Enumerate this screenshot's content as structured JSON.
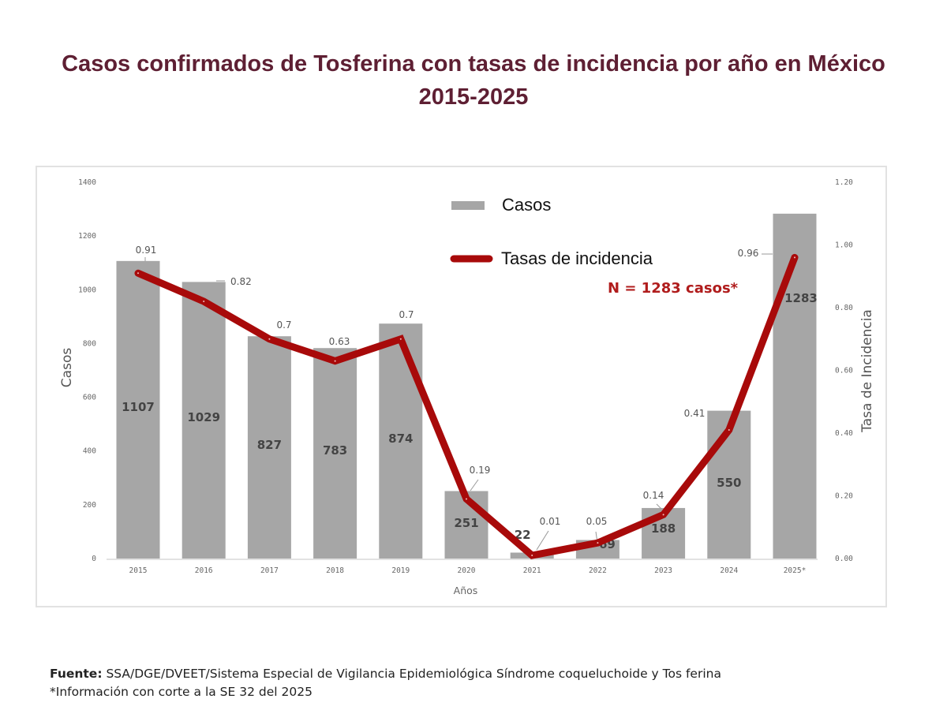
{
  "title": {
    "line1": "Casos confirmados de Tosferina con tasas de incidencia por año en México",
    "line2": "2015-2025"
  },
  "colors": {
    "title": "#5e1f33",
    "bars": "#a6a6a6",
    "line": "#a80a0a",
    "n_text": "#b01c1c"
  },
  "chart_data": {
    "type": "bar",
    "title": "Casos confirmados de Tosferina con tasas de incidencia por año en México 2015-2025",
    "categories": [
      "2015",
      "2016",
      "2017",
      "2018",
      "2019",
      "2020",
      "2021",
      "2022",
      "2023",
      "2024",
      "2025*"
    ],
    "xlabel": "Años",
    "ylabel": "Casos",
    "y2label": "Tasa de Incidencia",
    "ylim": [
      0,
      1400
    ],
    "y2lim": [
      0,
      1.2
    ],
    "yticks": [
      "0",
      "200",
      "400",
      "600",
      "800",
      "1000",
      "1200",
      "1400"
    ],
    "y2ticks": [
      "0.00",
      "0.20",
      "0.40",
      "0.60",
      "0.80",
      "1.00",
      "1.20"
    ],
    "grid": false,
    "legend_position": "top-center",
    "series": [
      {
        "name": "Casos",
        "type": "bar",
        "axis": "left",
        "values": [
          1107,
          1029,
          827,
          783,
          874,
          251,
          22,
          69,
          188,
          550,
          1283
        ],
        "labels": [
          "1107",
          "1029",
          "827",
          "783",
          "874",
          "251",
          "22",
          "69",
          "188",
          "550",
          "1283"
        ]
      },
      {
        "name": "Tasas de incidencia",
        "type": "line",
        "axis": "right",
        "values": [
          0.91,
          0.82,
          0.7,
          0.63,
          0.7,
          0.19,
          0.01,
          0.05,
          0.14,
          0.41,
          0.96
        ],
        "labels": [
          "0.91",
          "0.82",
          "0.7",
          "0.63",
          "0.7",
          "0.19",
          "0.01",
          "0.05",
          "0.14",
          "0.41",
          "0.96"
        ]
      }
    ],
    "annotations": [
      "N = 1283 casos*"
    ]
  },
  "legend": {
    "bars_label": "Casos",
    "line_label": "Tasas de incidencia",
    "total_note": "N = 1283 casos*"
  },
  "footer": {
    "source_label": "Fuente:",
    "source_text": " SSA/DGE/DVEET/Sistema Especial de Vigilancia Epidemiológica Síndrome coqueluchoide y Tos ferina",
    "note": "*Información con corte a la SE 32 del 2025"
  }
}
